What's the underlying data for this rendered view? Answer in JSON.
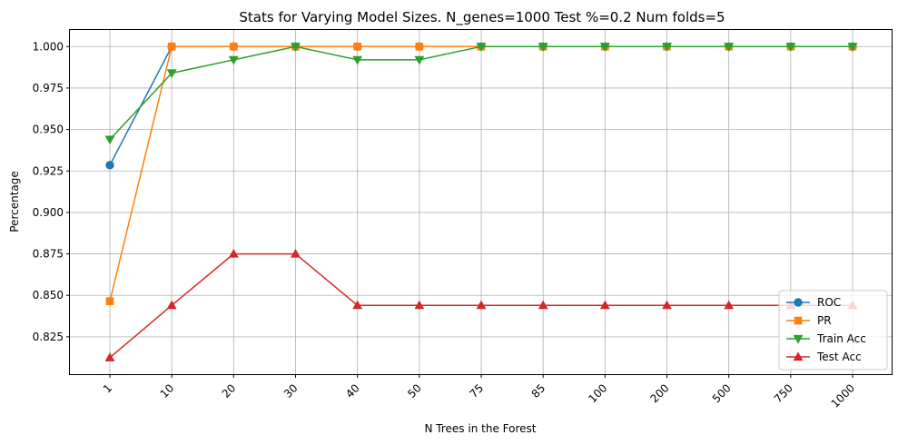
{
  "chart_data": {
    "type": "line",
    "title": "Stats for Varying Model Sizes. N_genes=1000 Test %=0.2 Num folds=5",
    "xlabel": "N Trees in the Forest",
    "ylabel": "Percentage",
    "categories": [
      "1",
      "10",
      "20",
      "30",
      "40",
      "50",
      "75",
      "85",
      "100",
      "200",
      "500",
      "750",
      "1000"
    ],
    "ylim": [
      0.8025,
      1.01
    ],
    "yticks": [
      "0.825",
      "0.850",
      "0.875",
      "0.900",
      "0.925",
      "0.950",
      "0.975",
      "1.000"
    ],
    "x_tick_rotation": 45,
    "grid": true,
    "legend_position": "lower-right",
    "series": [
      {
        "name": "ROC",
        "color": "#1f77b4",
        "marker": "circle",
        "values": [
          0.9285,
          1.0,
          1.0,
          1.0,
          1.0,
          1.0,
          1.0,
          1.0,
          1.0,
          1.0,
          1.0,
          1.0,
          1.0
        ]
      },
      {
        "name": "PR",
        "color": "#ff7f0e",
        "marker": "square",
        "values": [
          0.8465,
          1.0,
          1.0,
          1.0,
          1.0,
          1.0,
          1.0,
          1.0,
          1.0,
          1.0,
          1.0,
          1.0,
          1.0
        ]
      },
      {
        "name": "Train Acc",
        "color": "#2ca02c",
        "marker": "triangle-down",
        "values": [
          0.944,
          0.984,
          0.992,
          1.0,
          0.992,
          0.992,
          1.0,
          1.0,
          1.0,
          1.0,
          1.0,
          1.0,
          1.0
        ]
      },
      {
        "name": "Test Acc",
        "color": "#d62728",
        "marker": "triangle-up",
        "values": [
          0.8125,
          0.844,
          0.875,
          0.875,
          0.844,
          0.844,
          0.844,
          0.844,
          0.844,
          0.844,
          0.844,
          0.844,
          0.844
        ]
      }
    ]
  }
}
